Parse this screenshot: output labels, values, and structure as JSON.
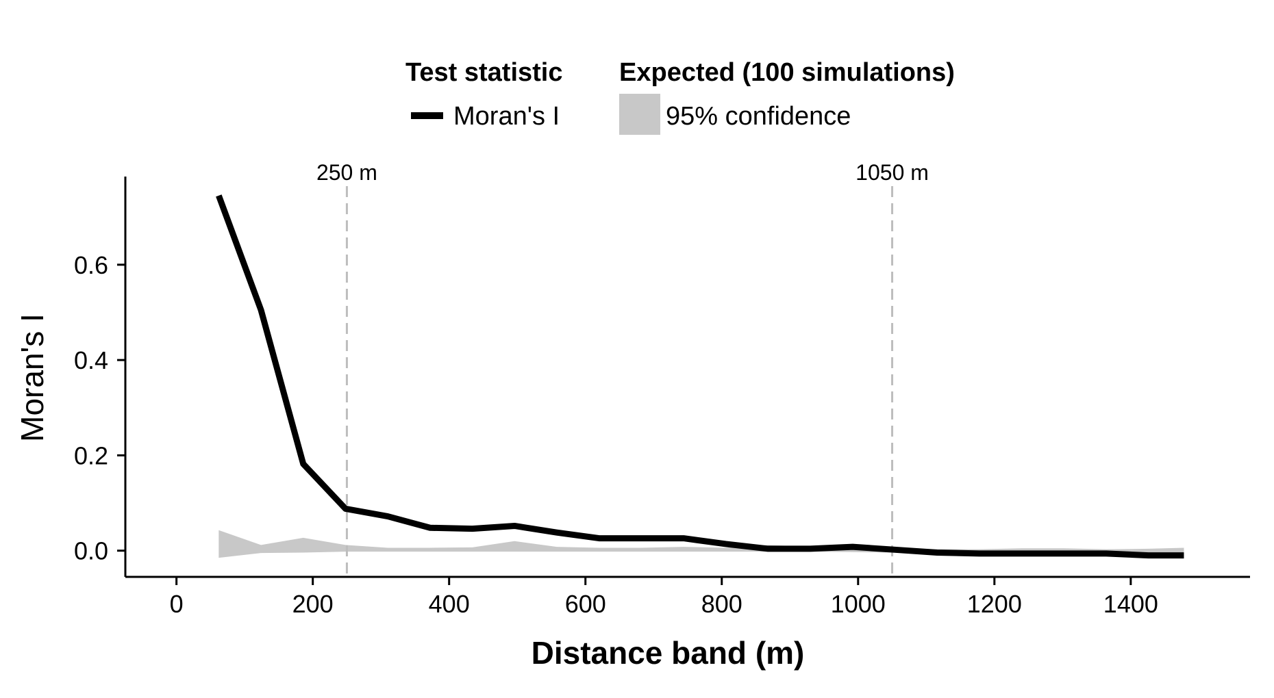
{
  "chart_data": {
    "type": "line",
    "xlabel": "Distance band (m)",
    "ylabel": "Moran's I",
    "xlim": [
      -75,
      1575
    ],
    "ylim": [
      -0.055,
      0.785
    ],
    "xticks": [
      0,
      200,
      400,
      600,
      800,
      1000,
      1200,
      1400
    ],
    "yticks": [
      0.0,
      0.2,
      0.4,
      0.6
    ],
    "ytick_labels": [
      "0.0",
      "0.2",
      "0.4",
      "0.6"
    ],
    "grid": false,
    "legend_position": "top",
    "legend": {
      "line_group_title": "Test statistic",
      "line_label": "Moran's I",
      "band_group_title": "Expected (100 simulations)",
      "band_label": "95% confidence"
    },
    "colors": {
      "line": "#000000",
      "band": "#c8c8c8",
      "reference_lines": "#bdbdbd"
    },
    "series": [
      {
        "name": "Moran's I",
        "x": [
          62,
          124,
          186,
          248,
          310,
          372,
          434,
          496,
          558,
          620,
          682,
          744,
          806,
          868,
          930,
          992,
          1054,
          1116,
          1178,
          1240,
          1302,
          1364,
          1426,
          1478
        ],
        "y": [
          0.745,
          0.505,
          0.182,
          0.088,
          0.072,
          0.048,
          0.046,
          0.052,
          0.038,
          0.026,
          0.026,
          0.026,
          0.014,
          0.004,
          0.004,
          0.008,
          0.002,
          -0.004,
          -0.006,
          -0.006,
          -0.006,
          -0.006,
          -0.01,
          -0.01
        ]
      }
    ],
    "confidence_band": {
      "name": "95% confidence",
      "x": [
        62,
        124,
        186,
        248,
        310,
        372,
        434,
        496,
        558,
        620,
        682,
        744,
        806,
        868,
        930,
        992,
        1054,
        1116,
        1178,
        1240,
        1302,
        1364,
        1426,
        1478
      ],
      "upper": [
        0.043,
        0.012,
        0.027,
        0.012,
        0.006,
        0.006,
        0.007,
        0.02,
        0.008,
        0.006,
        0.006,
        0.008,
        0.006,
        0.012,
        0.008,
        0.006,
        0.006,
        0.003,
        0.003,
        0.005,
        0.005,
        0.003,
        0.004,
        0.006
      ],
      "lower": [
        -0.015,
        -0.005,
        -0.004,
        -0.002,
        -0.002,
        -0.002,
        -0.002,
        -0.002,
        -0.002,
        -0.002,
        -0.002,
        -0.002,
        -0.002,
        -0.002,
        -0.002,
        -0.003,
        -0.004,
        -0.007,
        -0.008,
        -0.008,
        -0.008,
        -0.009,
        -0.01,
        -0.01
      ]
    },
    "reference_lines": [
      {
        "x": 250,
        "label": "250 m"
      },
      {
        "x": 1050,
        "label": "1050 m"
      }
    ]
  }
}
